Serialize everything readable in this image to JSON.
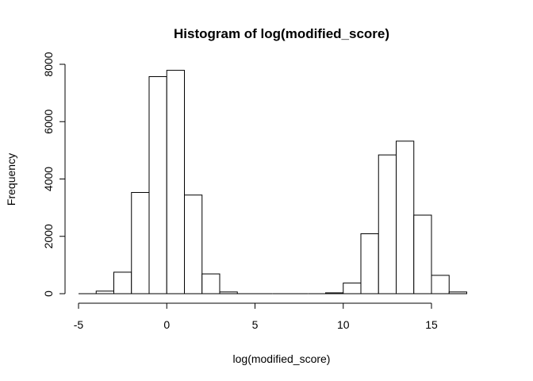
{
  "chart_data": {
    "type": "bar",
    "title": "Histogram of log(modified_score)",
    "xlabel": "log(modified_score)",
    "ylabel": "Frequency",
    "xlim": [
      -5,
      18
    ],
    "ylim": [
      0,
      8000
    ],
    "x_ticks": [
      -5,
      0,
      5,
      10,
      15
    ],
    "y_ticks": [
      0,
      2000,
      4000,
      6000,
      8000
    ],
    "bin_width": 1,
    "bins": [
      {
        "x0": -5,
        "x1": -4,
        "count": 0
      },
      {
        "x0": -4,
        "x1": -3,
        "count": 90
      },
      {
        "x0": -3,
        "x1": -2,
        "count": 750
      },
      {
        "x0": -2,
        "x1": -1,
        "count": 3530
      },
      {
        "x0": -1,
        "x1": 0,
        "count": 7570
      },
      {
        "x0": 0,
        "x1": 1,
        "count": 7790
      },
      {
        "x0": 1,
        "x1": 2,
        "count": 3440
      },
      {
        "x0": 2,
        "x1": 3,
        "count": 690
      },
      {
        "x0": 3,
        "x1": 4,
        "count": 60
      },
      {
        "x0": 4,
        "x1": 5,
        "count": 0
      },
      {
        "x0": 5,
        "x1": 6,
        "count": 0
      },
      {
        "x0": 6,
        "x1": 7,
        "count": 0
      },
      {
        "x0": 7,
        "x1": 8,
        "count": 0
      },
      {
        "x0": 8,
        "x1": 9,
        "count": 0
      },
      {
        "x0": 9,
        "x1": 10,
        "count": 30
      },
      {
        "x0": 10,
        "x1": 11,
        "count": 370
      },
      {
        "x0": 11,
        "x1": 12,
        "count": 2090
      },
      {
        "x0": 12,
        "x1": 13,
        "count": 4840
      },
      {
        "x0": 13,
        "x1": 14,
        "count": 5320
      },
      {
        "x0": 14,
        "x1": 15,
        "count": 2740
      },
      {
        "x0": 15,
        "x1": 16,
        "count": 640
      },
      {
        "x0": 16,
        "x1": 17,
        "count": 60
      }
    ],
    "grid": false
  }
}
